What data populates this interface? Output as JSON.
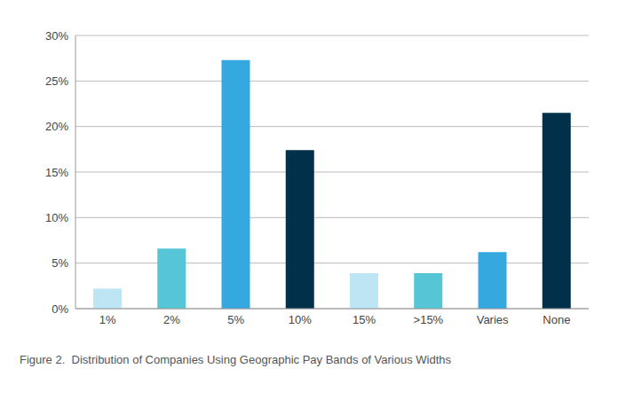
{
  "chart_data": {
    "type": "bar",
    "title": "Figure 2.  Distribution of Companies Using Geographic Pay Bands of Various Widths",
    "categories": [
      "1%",
      "2%",
      "5%",
      "10%",
      "15%",
      ">15%",
      "Varies",
      "None"
    ],
    "values": [
      2.2,
      6.6,
      27.3,
      17.4,
      3.9,
      3.9,
      6.2,
      21.5
    ],
    "colors": [
      "#bde5f3",
      "#56c5d6",
      "#35a8e0",
      "#00304a",
      "#bde5f3",
      "#56c5d6",
      "#35a8e0",
      "#00304a"
    ],
    "ylim": [
      0,
      30
    ],
    "yticks": [
      {
        "value": 0,
        "label": "0%"
      },
      {
        "value": 5,
        "label": "5%"
      },
      {
        "value": 10,
        "label": "10%"
      },
      {
        "value": 15,
        "label": "15%"
      },
      {
        "value": 20,
        "label": "20%"
      },
      {
        "value": 25,
        "label": "25%"
      },
      {
        "value": 30,
        "label": "30%"
      }
    ],
    "grid": true
  }
}
